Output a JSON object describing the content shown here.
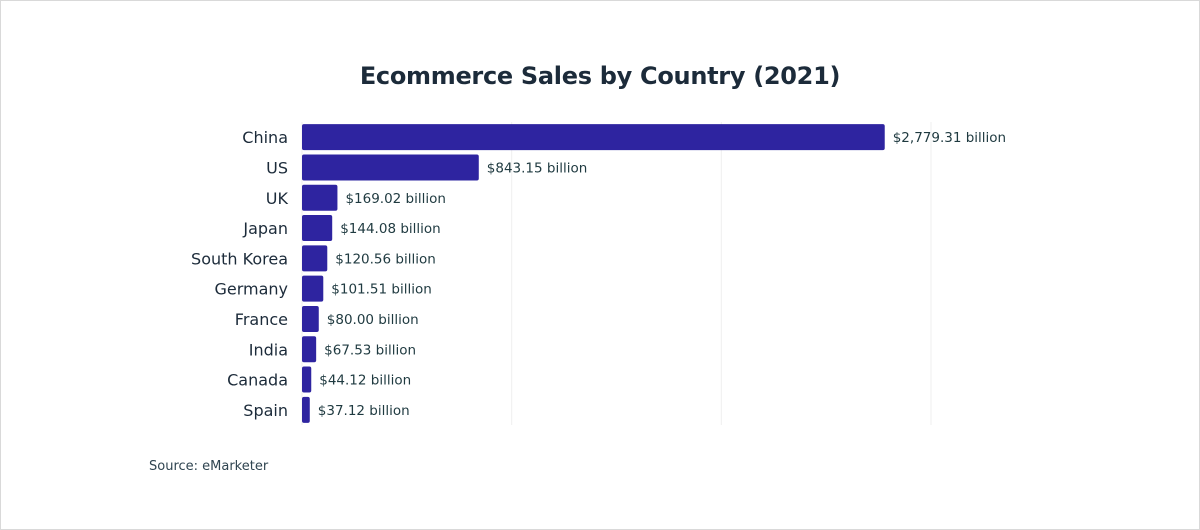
{
  "chart_data": {
    "type": "bar",
    "orientation": "horizontal",
    "title": "Ecommerce Sales by Country (2021)",
    "categories": [
      "China",
      "US",
      "UK",
      "Japan",
      "South Korea",
      "Germany",
      "France",
      "India",
      "Canada",
      "Spain"
    ],
    "values": [
      2779.31,
      843.15,
      169.02,
      144.08,
      120.56,
      101.51,
      80.0,
      67.53,
      44.12,
      37.12
    ],
    "data_labels": [
      "$2,779.31 billion",
      "$843.15 billion",
      "$169.02 billion",
      "$144.08 billion",
      "$120.56 billion",
      "$101.51 billion",
      "$80.00 billion",
      "$67.53 billion",
      "$44.12 billion",
      "$37.12 billion"
    ],
    "xlim": [
      0,
      3000
    ],
    "grid": true,
    "bar_color": "#2e24a0",
    "xlabel": "",
    "ylabel": "",
    "source": "Source: eMarketer"
  }
}
